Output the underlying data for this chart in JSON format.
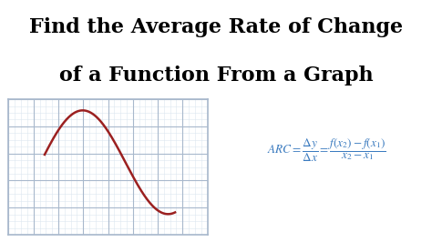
{
  "title_line1": "Find the Average Rate of Change",
  "title_line2": "of a Function From a Graph",
  "title_fontsize": 16,
  "title_color": "#000000",
  "title_weight": "bold",
  "background_color": "#ffffff",
  "graph_bg": "#ffffff",
  "grid_color": "#a8b8cc",
  "grid_minor_color": "#dce6ef",
  "curve_color": "#9b2020",
  "curve_linewidth": 1.8,
  "formula_color": "#3a7abf",
  "grid_rows": 5,
  "grid_cols": 8,
  "grid_minor_rows": 4,
  "grid_minor_cols": 4
}
